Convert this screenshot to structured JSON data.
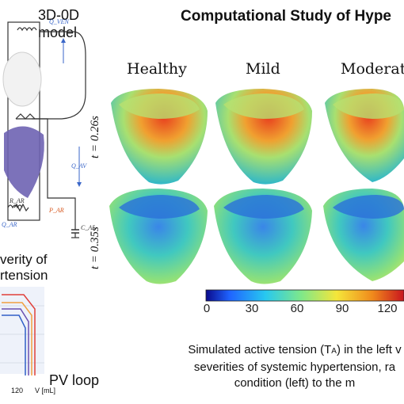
{
  "title": "Computational Study of Hype",
  "left_panel": {
    "model_label_line1": "3D-0D",
    "model_label_line2": "model",
    "severity_line1": "verity of",
    "severity_line2": "rtension",
    "pv_loop_label": "PV loop",
    "pv_x_tick": "120",
    "pv_x_unit": "V [mL]",
    "circuit_labels": [
      "Q_VEN",
      "Q_AV",
      "R_AR",
      "P_AR",
      "C_AR",
      "Q_AR"
    ]
  },
  "columns": [
    "Healthy",
    "Mild",
    "Moderate"
  ],
  "rows": [
    "t = 0.26s",
    "t = 0.35s"
  ],
  "colorbar": {
    "ticks": [
      "0",
      "30",
      "60",
      "90",
      "120"
    ],
    "colors": [
      "#0a0a8c",
      "#1f64ff",
      "#27c8f0",
      "#7ee88a",
      "#f5e63a",
      "#f08a1c",
      "#c8141e"
    ]
  },
  "caption": {
    "line1": "Simulated active tension (T",
    "sub": "A",
    "line1_end": ") in the left v",
    "line2": "severities of systemic hypertension, ra",
    "line3": "condition (left) to the m"
  }
}
